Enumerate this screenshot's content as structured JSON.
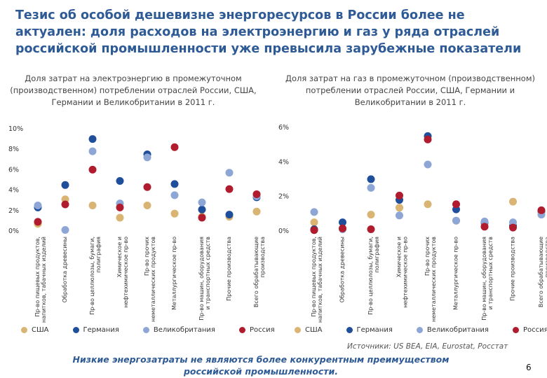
{
  "title": "Тезис об особой дешевизне энергоресурсов в России более не актуален: доля расходов на электроэнергию и газ у ряда отраслей российской промышленности уже превысила зарубежные показатели",
  "colors": {
    "title": "#2E5A95",
    "usa": "#D9B472",
    "germany": "#1F4E9A",
    "uk": "#8DA6D6",
    "russia": "#B01C2E"
  },
  "legend": [
    {
      "key": "usa",
      "label": "США"
    },
    {
      "key": "germany",
      "label": "Германия"
    },
    {
      "key": "uk",
      "label": "Великобритания"
    },
    {
      "key": "russia",
      "label": "Россия"
    }
  ],
  "chart_data": [
    {
      "type": "scatter",
      "title": "Доля затрат на электроэнергию в промежуточном (производственном) потреблении отраслей России, США, Германии и Великобритании в 2011 г.",
      "ylim": [
        0,
        10
      ],
      "yticks": [
        "0%",
        "2%",
        "4%",
        "6%",
        "8%",
        "10%"
      ],
      "categories": [
        "Пр-во пищевых продуктов, напитков, табачных изделий",
        "Обработка древесины",
        "Пр-во целлюлозы, бумаги, полиграфия",
        "Химическое и нефтехимическое пр-во",
        "Пр-во прочих неметаллических продуктов",
        "Металлургическое пр-во",
        "Пр-во машин, оборудования и транспортных средств",
        "Прочие производства",
        "Всего обрабатывающие производства"
      ],
      "series": [
        {
          "name": "США",
          "key": "usa",
          "values": [
            0.7,
            3.1,
            2.5,
            1.3,
            2.5,
            1.7,
            1.4,
            1.4,
            1.9
          ]
        },
        {
          "name": "Германия",
          "key": "germany",
          "values": [
            2.3,
            4.5,
            9.0,
            4.9,
            7.5,
            4.6,
            2.1,
            1.6,
            3.3
          ]
        },
        {
          "name": "Великобритания",
          "key": "uk",
          "values": [
            2.5,
            0.1,
            7.8,
            2.7,
            7.2,
            3.5,
            2.8,
            5.7,
            3.4
          ]
        },
        {
          "name": "Россия",
          "key": "russia",
          "values": [
            0.9,
            2.6,
            6.0,
            2.3,
            4.3,
            8.2,
            1.3,
            4.1,
            3.6
          ]
        }
      ]
    },
    {
      "type": "scatter",
      "title": "Доля затрат на газ в промежуточном (производственном) потреблении отраслей России, США, Германии и Великобритании в 2011 г.",
      "ylim": [
        0,
        6
      ],
      "yticks": [
        "0%",
        "2%",
        "4%",
        "6%"
      ],
      "categories": [
        "Пр-во пищевых продуктов, напитков, табачных изделий",
        "Обработка древесины",
        "Пр-во целлюлозы, бумаги, полиграфия",
        "Химическое и нефтехимическое пр-во",
        "Пр-во прочих неметаллических продуктов",
        "Металлургическое пр-во",
        "Пр-во машин, оборудования и транспортных средств",
        "Прочие производства",
        "Всего обрабатывающие производства"
      ],
      "series": [
        {
          "name": "США",
          "key": "usa",
          "values": [
            0.5,
            0.1,
            0.95,
            1.35,
            1.55,
            0.6,
            0.4,
            1.7,
            1.1
          ]
        },
        {
          "name": "Германия",
          "key": "germany",
          "values": [
            0.1,
            0.5,
            3.0,
            1.8,
            5.5,
            1.25,
            0.5,
            0.3,
            1.15
          ]
        },
        {
          "name": "Великобритания",
          "key": "uk",
          "values": [
            1.1,
            0.1,
            2.5,
            0.9,
            3.85,
            0.6,
            0.55,
            0.5,
            0.95
          ]
        },
        {
          "name": "Россия",
          "key": "russia",
          "values": [
            0.05,
            0.15,
            0.1,
            2.05,
            5.3,
            1.55,
            0.25,
            0.2,
            1.2
          ]
        }
      ]
    }
  ],
  "source": "Источники: US BEA, EIA, Eurostat, Росстат",
  "conclusion": "Низкие энергозатраты не являются более конкурентным преимуществом российской промышленности.",
  "page_number": "6"
}
